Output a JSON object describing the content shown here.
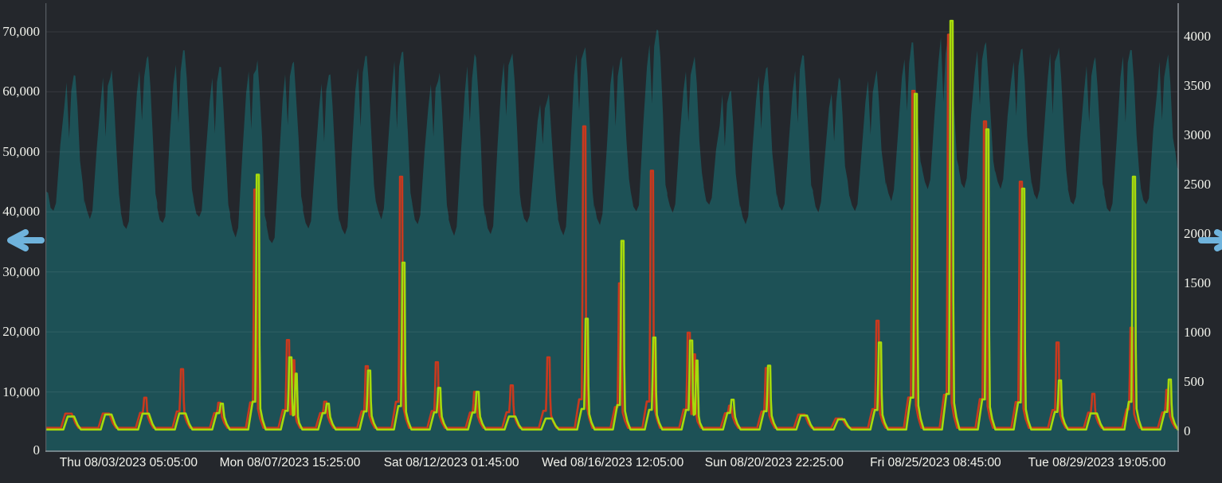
{
  "panel": {
    "background": "#24272c",
    "text_color": "#f2f3ec",
    "gridline": "rgba(255,255,255,0.085)"
  },
  "nav": {
    "left_arrow": {
      "icon": "arrow-left",
      "color": "#6fb3dc"
    },
    "right_arrow": {
      "icon": "arrow-right",
      "color": "#6fb3dc"
    }
  },
  "chart_data": {
    "type": "area+line",
    "description": "Dual-axis time series, Aug 2023. Teal area (daily load cycle) reads on the left axis; red and green spike lines read on the right axis. Values estimated from gridlines.",
    "x_axis": {
      "ticks": [
        "Thu 08/03/2023 05:05:00",
        "Mon 08/07/2023 15:25:00",
        "Sat 08/12/2023 01:45:00",
        "Wed 08/16/2023 12:05:00",
        "Sun 08/20/2023 22:25:00",
        "Fri 08/25/2023 08:45:00",
        "Tue 08/29/2023 19:05:00"
      ],
      "tick_interval": "106h 20m",
      "range": "≈ 07/31/2023 22:00 to 09/01/2023 01:00"
    },
    "left_axis": {
      "labels": [
        "0",
        "10,000",
        "20,000",
        "30,000",
        "40,000",
        "50,000",
        "60,000",
        "70,000"
      ],
      "values": [
        0,
        10000,
        20000,
        30000,
        40000,
        50000,
        60000,
        70000
      ],
      "series": "area"
    },
    "right_axis": {
      "labels": [
        "0",
        "500",
        "1000",
        "1500",
        "2000",
        "2500",
        "3000",
        "3500",
        "4000"
      ],
      "values": [
        0,
        500,
        1000,
        1500,
        2000,
        2500,
        3000,
        3500,
        4000
      ],
      "series": "red and green lines"
    },
    "area_series": {
      "name": "daily-cycle-area",
      "axis": "left",
      "color": "#1d5156",
      "start_value": 43500,
      "end_trough": 44000,
      "daily": [
        {
          "day": "08/01",
          "peak": 62500,
          "dip": 51500,
          "trough": 40000
        },
        {
          "day": "08/02",
          "peak": 63500,
          "dip": 52500,
          "trough": 39000
        },
        {
          "day": "08/03",
          "peak": 66000,
          "dip": 54500,
          "trough": 37000
        },
        {
          "day": "08/04",
          "peak": 67000,
          "dip": 55500,
          "trough": 38000
        },
        {
          "day": "08/05",
          "peak": 64000,
          "dip": 53500,
          "trough": 39000
        },
        {
          "day": "08/06",
          "peak": 65000,
          "dip": 53000,
          "trough": 36000
        },
        {
          "day": "08/07",
          "peak": 65000,
          "dip": 54500,
          "trough": 34500
        },
        {
          "day": "08/08",
          "peak": 63000,
          "dip": 52000,
          "trough": 37000
        },
        {
          "day": "08/09",
          "peak": 66000,
          "dip": 55000,
          "trough": 36000
        },
        {
          "day": "08/10",
          "peak": 66500,
          "dip": 54500,
          "trough": 39000
        },
        {
          "day": "08/11",
          "peak": 63000,
          "dip": 52500,
          "trough": 38000
        },
        {
          "day": "08/12",
          "peak": 66000,
          "dip": 54500,
          "trough": 36000
        },
        {
          "day": "08/13",
          "peak": 66500,
          "dip": 55500,
          "trough": 36500
        },
        {
          "day": "08/14",
          "peak": 60000,
          "dip": 50500,
          "trough": 38000
        },
        {
          "day": "08/15",
          "peak": 67500,
          "dip": 56000,
          "trough": 36000
        },
        {
          "day": "08/16",
          "peak": 66000,
          "dip": 54000,
          "trough": 38000
        },
        {
          "day": "08/17",
          "peak": 70500,
          "dip": 58000,
          "trough": 40000
        },
        {
          "day": "08/18",
          "peak": 66000,
          "dip": 55000,
          "trough": 40000
        },
        {
          "day": "08/19",
          "peak": 60500,
          "dip": 50500,
          "trough": 41000
        },
        {
          "day": "08/20",
          "peak": 64000,
          "dip": 53000,
          "trough": 38000
        },
        {
          "day": "08/21",
          "peak": 66000,
          "dip": 54500,
          "trough": 40000
        },
        {
          "day": "08/22",
          "peak": 62000,
          "dip": 52000,
          "trough": 40000
        },
        {
          "day": "08/23",
          "peak": 63500,
          "dip": 53000,
          "trough": 40000
        },
        {
          "day": "08/24",
          "peak": 68000,
          "dip": 57000,
          "trough": 42000
        },
        {
          "day": "08/25",
          "peak": 70000,
          "dip": 58000,
          "trough": 44000
        },
        {
          "day": "08/26",
          "peak": 68500,
          "dip": 57500,
          "trough": 44000
        },
        {
          "day": "08/27",
          "peak": 67000,
          "dip": 56500,
          "trough": 44000
        },
        {
          "day": "08/28",
          "peak": 67500,
          "dip": 56000,
          "trough": 42000
        },
        {
          "day": "08/29",
          "peak": 66000,
          "dip": 55000,
          "trough": 41000
        },
        {
          "day": "08/30",
          "peak": 67000,
          "dip": 55500,
          "trough": 40000
        },
        {
          "day": "08/31",
          "peak": 66000,
          "dip": 55000,
          "trough": 41000
        }
      ]
    },
    "line_series": [
      {
        "name": "red-spike-line",
        "axis": "right",
        "color": "#c9391e",
        "baseline": 35
      },
      {
        "name": "green-spike-line",
        "axis": "right",
        "color": "#a7da0b",
        "baseline": 18
      }
    ],
    "spikes": [
      {
        "day": 1,
        "hour": 15.6,
        "red": 180,
        "green": 150
      },
      {
        "day": 2,
        "hour": 16.3,
        "red": 190,
        "green": 170
      },
      {
        "day": 3,
        "hour": 16.9,
        "red": 340,
        "green": 180
      },
      {
        "day": 4,
        "hour": 17.1,
        "red": 630,
        "green": 215
      },
      {
        "day": 5,
        "hour": 17.7,
        "red": 290,
        "green": 280
      },
      {
        "day": 6,
        "hour": 17.4,
        "red": 2450,
        "green": 2600
      },
      {
        "day": 7,
        "hour": 14.9,
        "red": 925,
        "green": 750,
        "double": true
      },
      {
        "day": 8,
        "hour": 15.5,
        "red": 300,
        "green": 280
      },
      {
        "day": 9,
        "hour": 18.8,
        "red": 660,
        "green": 615
      },
      {
        "day": 10,
        "hour": 17.4,
        "red": 2580,
        "green": 1710
      },
      {
        "day": 11,
        "hour": 17.0,
        "red": 700,
        "green": 440
      },
      {
        "day": 12,
        "hour": 18.2,
        "red": 400,
        "green": 400
      },
      {
        "day": 13,
        "hour": 18.3,
        "red": 465,
        "green": 150
      },
      {
        "day": 14,
        "hour": 18.5,
        "red": 750,
        "green": 130
      },
      {
        "day": 15,
        "hour": 18.1,
        "red": 3090,
        "green": 1140
      },
      {
        "day": 16,
        "hour": 17.7,
        "red": 1500,
        "green": 1930
      },
      {
        "day": 17,
        "hour": 14.7,
        "red": 2640,
        "green": 950
      },
      {
        "day": 18,
        "hour": 14.9,
        "red": 1000,
        "green": 920,
        "double": true
      },
      {
        "day": 19,
        "hour": 18.2,
        "red": 260,
        "green": 320
      },
      {
        "day": 20,
        "hour": 18.3,
        "red": 640,
        "green": 665
      },
      {
        "day": 21,
        "hour": 18.5,
        "red": 170,
        "green": 160
      },
      {
        "day": 22,
        "hour": 19.1,
        "red": 130,
        "green": 120
      },
      {
        "day": 23,
        "hour": 19.3,
        "red": 1120,
        "green": 900
      },
      {
        "day": 24,
        "hour": 18.9,
        "red": 3450,
        "green": 3420
      },
      {
        "day": 25,
        "hour": 18.5,
        "red": 4020,
        "green": 4160
      },
      {
        "day": 26,
        "hour": 18.1,
        "red": 3140,
        "green": 3060
      },
      {
        "day": 27,
        "hour": 17.7,
        "red": 2530,
        "green": 2460
      },
      {
        "day": 28,
        "hour": 17.9,
        "red": 900,
        "green": 515
      },
      {
        "day": 29,
        "hour": 17.5,
        "red": 380,
        "green": 215
      },
      {
        "day": 30,
        "hour": 18.7,
        "red": 1050,
        "green": 2580
      },
      {
        "day": 31,
        "hour": 18.3,
        "red": 420,
        "green": 525
      }
    ],
    "legend": "none",
    "grid": "horizontal only"
  }
}
